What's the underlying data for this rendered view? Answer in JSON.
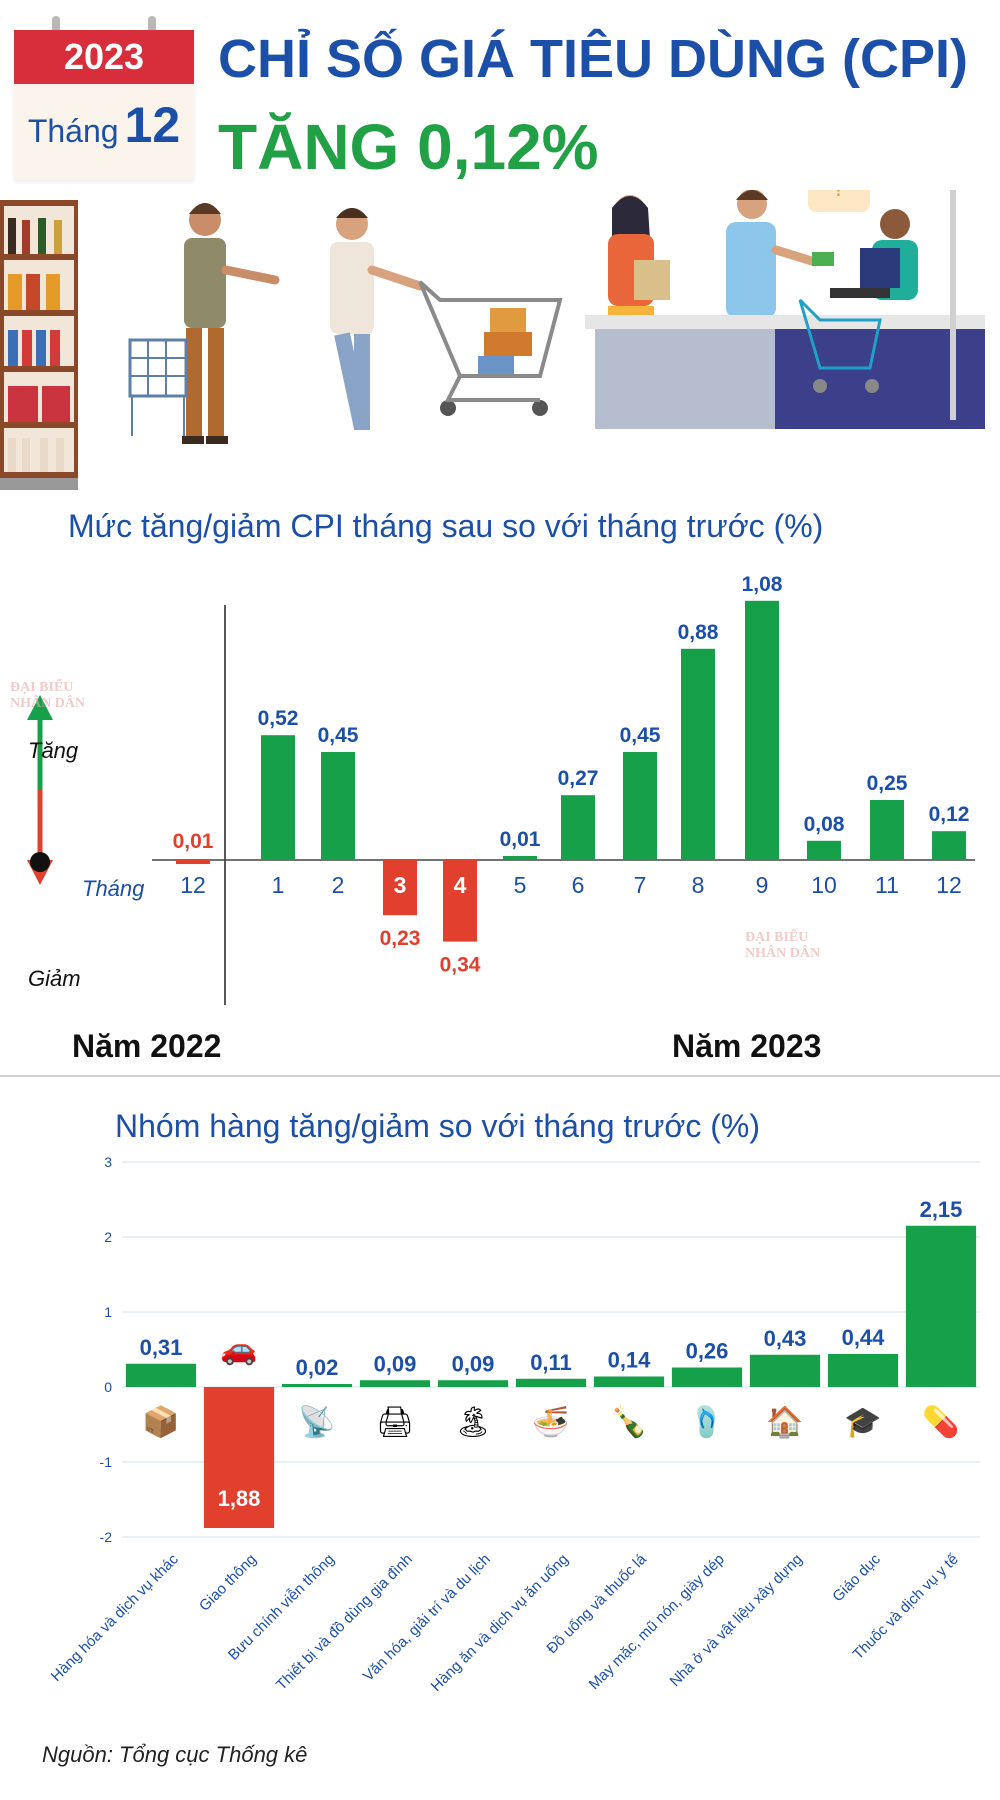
{
  "header": {
    "year": "2023",
    "month_label": "Tháng",
    "month_number": "12",
    "title": "CHỈ SỐ GIÁ TIÊU DÙNG (CPI)",
    "subtitle": "TĂNG 0,12%"
  },
  "watermark": {
    "line1": "ĐẠI BIỂU",
    "line2": "NHÂN DÂN"
  },
  "chart_data": [
    {
      "type": "bar",
      "title": "Mức tăng/giảm CPI tháng sau so với tháng trước (%)",
      "x_axis_label": "Tháng",
      "up_label": "Tăng",
      "down_label": "Giảm",
      "year_labels": [
        "Năm 2022",
        "Năm 2023"
      ],
      "categories": [
        "12",
        "1",
        "2",
        "3",
        "4",
        "5",
        "6",
        "7",
        "8",
        "9",
        "10",
        "11",
        "12"
      ],
      "category_years": [
        "2022",
        "2023",
        "2023",
        "2023",
        "2023",
        "2023",
        "2023",
        "2023",
        "2023",
        "2023",
        "2023",
        "2023",
        "2023"
      ],
      "values": [
        -0.01,
        0.52,
        0.45,
        -0.23,
        -0.34,
        0.01,
        0.27,
        0.45,
        0.88,
        1.08,
        0.08,
        0.25,
        0.12
      ],
      "value_labels": [
        "0,01",
        "0,52",
        "0,45",
        "0,23",
        "0,34",
        "0,01",
        "0,27",
        "0,45",
        "0,88",
        "1,08",
        "0,08",
        "0,25",
        "0,12"
      ],
      "colors": {
        "increase": "#16a04a",
        "decrease": "#e2402f",
        "increase_text": "#1b4fa8",
        "decrease_text": "#e2402f"
      }
    },
    {
      "type": "bar",
      "title": "Nhóm hàng tăng/giảm so với tháng trước (%)",
      "ylim": [
        -2,
        3
      ],
      "y_ticks": [
        "3",
        "2",
        "1",
        "0",
        "-1",
        "-2"
      ],
      "grid": true,
      "categories": [
        "Hàng hóa và dịch vụ khác",
        "Giao thông",
        "Bưu chính viễn thông",
        "Thiết bị và đồ dùng gia đình",
        "Văn hóa, giải trí và du lịch",
        "Hàng ăn và dịch vụ ăn uống",
        "Đồ uống và thuốc lá",
        "May mặc, mũ nón, giày dép",
        "Nhà ở và vật liệu xây dựng",
        "Giáo dục",
        "Thuốc và dịch vụ y tế"
      ],
      "values": [
        0.31,
        -1.88,
        0.02,
        0.09,
        0.09,
        0.11,
        0.14,
        0.26,
        0.43,
        0.44,
        2.15
      ],
      "value_labels": [
        "0,31",
        "1,88",
        "0,02",
        "0,09",
        "0,09",
        "0,11",
        "0,14",
        "0,26",
        "0,43",
        "0,44",
        "2,15"
      ],
      "icons": [
        "gift-box-icon",
        "car-icon",
        "antenna-icon",
        "appliance-icon",
        "beach-icon",
        "food-bowl-icon",
        "bottles-icon",
        "sandals-icon",
        "house-icon",
        "graduation-cap-icon",
        "pills-icon"
      ],
      "colors": {
        "increase": "#16a04a",
        "decrease": "#e2402f",
        "label_text": "#1b4fa8"
      }
    }
  ],
  "source": "Nguồn: Tổng cục Thống kê"
}
